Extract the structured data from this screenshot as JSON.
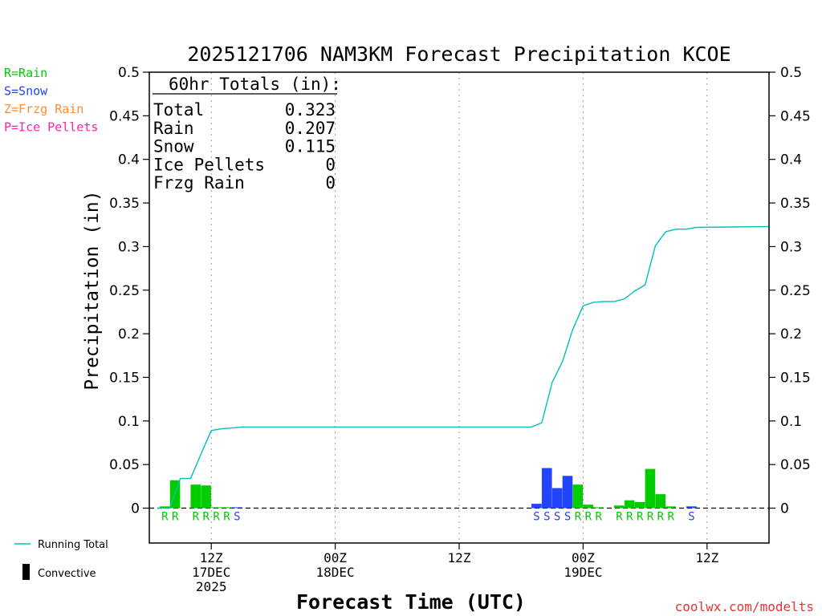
{
  "chart_data": {
    "type": "bar",
    "title": "2025121706 NAM3KM Forecast Precipitation KCOE",
    "xlabel": "Forecast Time (UTC)",
    "ylabel": "Precipitation (in)",
    "ylim": [
      -0.04,
      0.5
    ],
    "xlim": [
      0,
      60
    ],
    "y_ticks": [
      0,
      0.05,
      0.1,
      0.15,
      0.2,
      0.25,
      0.3,
      0.35,
      0.4,
      0.45,
      0.5
    ],
    "y_tick_labels": [
      "0",
      "0.05",
      "0.1",
      "0.15",
      "0.2",
      "0.25",
      "0.3",
      "0.35",
      "0.4",
      "0.45",
      "0.5"
    ],
    "x_ticks": [
      {
        "hour": 6,
        "lines": [
          "12Z",
          "17DEC",
          "2025"
        ]
      },
      {
        "hour": 18,
        "lines": [
          "00Z",
          "18DEC"
        ]
      },
      {
        "hour": 30,
        "lines": [
          "12Z"
        ]
      },
      {
        "hour": 42,
        "lines": [
          "00Z",
          "19DEC"
        ]
      },
      {
        "hour": 54,
        "lines": [
          "12Z"
        ]
      }
    ],
    "legend_types": [
      {
        "label": "R=Rain",
        "color": "#00cc00"
      },
      {
        "label": "S=Snow",
        "color": "#2244ff"
      },
      {
        "label": "Z=Frzg Rain",
        "color": "#ff8c33"
      },
      {
        "label": "P=Ice Pellets",
        "color": "#ff22aa"
      }
    ],
    "legend_lines": [
      {
        "label": "Running Total",
        "color": "#00c0c0",
        "kind": "line"
      },
      {
        "label": "Convective",
        "color": "#000000",
        "kind": "bar"
      }
    ],
    "type_colors": {
      "R": "#00cc00",
      "S": "#2244ff",
      "Z": "#ff8c33",
      "P": "#ff22aa"
    },
    "series": [
      {
        "name": "Hourly Precipitation",
        "bars": [
          {
            "hour": 2,
            "value": 0.002,
            "type": "R"
          },
          {
            "hour": 3,
            "value": 0.032,
            "type": "R"
          },
          {
            "hour": 5,
            "value": 0.027,
            "type": "R"
          },
          {
            "hour": 6,
            "value": 0.026,
            "type": "R"
          },
          {
            "hour": 7,
            "value": 0.001,
            "type": "R"
          },
          {
            "hour": 8,
            "value": 0.001,
            "type": "R"
          },
          {
            "hour": 9,
            "value": 0.001,
            "type": "S"
          },
          {
            "hour": 38,
            "value": 0.005,
            "type": "S"
          },
          {
            "hour": 39,
            "value": 0.046,
            "type": "S"
          },
          {
            "hour": 40,
            "value": 0.023,
            "type": "S"
          },
          {
            "hour": 41,
            "value": 0.037,
            "type": "S"
          },
          {
            "hour": 42,
            "value": 0.027,
            "type": "R"
          },
          {
            "hour": 43,
            "value": 0.004,
            "type": "R"
          },
          {
            "hour": 44,
            "value": 0.001,
            "type": "R"
          },
          {
            "hour": 46,
            "value": 0.003,
            "type": "R"
          },
          {
            "hour": 47,
            "value": 0.009,
            "type": "R"
          },
          {
            "hour": 48,
            "value": 0.007,
            "type": "R"
          },
          {
            "hour": 49,
            "value": 0.045,
            "type": "R"
          },
          {
            "hour": 50,
            "value": 0.016,
            "type": "R"
          },
          {
            "hour": 51,
            "value": 0.002,
            "type": "R"
          },
          {
            "hour": 53,
            "value": 0.002,
            "type": "S"
          }
        ]
      },
      {
        "name": "Running Total",
        "points": [
          [
            0.8,
            0
          ],
          [
            2,
            0.0
          ],
          [
            3,
            0.034
          ],
          [
            4,
            0.034
          ],
          [
            5,
            0.062
          ],
          [
            6,
            0.089
          ],
          [
            7,
            0.091
          ],
          [
            8,
            0.092
          ],
          [
            9,
            0.093
          ],
          [
            18,
            0.093
          ],
          [
            30,
            0.093
          ],
          [
            37,
            0.093
          ],
          [
            38,
            0.098
          ],
          [
            39,
            0.144
          ],
          [
            40,
            0.168
          ],
          [
            41,
            0.205
          ],
          [
            42,
            0.232
          ],
          [
            43,
            0.236
          ],
          [
            44,
            0.237
          ],
          [
            45,
            0.237
          ],
          [
            46,
            0.24
          ],
          [
            47,
            0.249
          ],
          [
            48,
            0.256
          ],
          [
            49,
            0.301
          ],
          [
            50,
            0.317
          ],
          [
            51,
            0.32
          ],
          [
            52,
            0.32
          ],
          [
            53,
            0.322
          ],
          [
            60,
            0.323
          ]
        ]
      }
    ],
    "type_markers": [
      {
        "hour": 2,
        "type": "R"
      },
      {
        "hour": 3,
        "type": "R"
      },
      {
        "hour": 5,
        "type": "R"
      },
      {
        "hour": 6,
        "type": "R"
      },
      {
        "hour": 7,
        "type": "R"
      },
      {
        "hour": 8,
        "type": "R"
      },
      {
        "hour": 9,
        "type": "S"
      },
      {
        "hour": 38,
        "type": "S"
      },
      {
        "hour": 39,
        "type": "S"
      },
      {
        "hour": 40,
        "type": "S"
      },
      {
        "hour": 41,
        "type": "S"
      },
      {
        "hour": 42,
        "type": "R"
      },
      {
        "hour": 43,
        "type": "R"
      },
      {
        "hour": 44,
        "type": "R"
      },
      {
        "hour": 46,
        "type": "R"
      },
      {
        "hour": 47,
        "type": "R"
      },
      {
        "hour": 48,
        "type": "R"
      },
      {
        "hour": 49,
        "type": "R"
      },
      {
        "hour": 50,
        "type": "R"
      },
      {
        "hour": 51,
        "type": "R"
      },
      {
        "hour": 53,
        "type": "S"
      }
    ],
    "totals_box": {
      "title": "60hr Totals (in):",
      "rows": [
        {
          "label": "Total",
          "value": "0.323"
        },
        {
          "label": "Rain",
          "value": "0.207"
        },
        {
          "label": "Snow",
          "value": "0.115"
        },
        {
          "label": "Ice Pellets",
          "value": "0"
        },
        {
          "label": "Frzg Rain",
          "value": "0"
        }
      ]
    },
    "credit": "coolwx.com/modelts",
    "running_total_color": "#00c0c0"
  }
}
